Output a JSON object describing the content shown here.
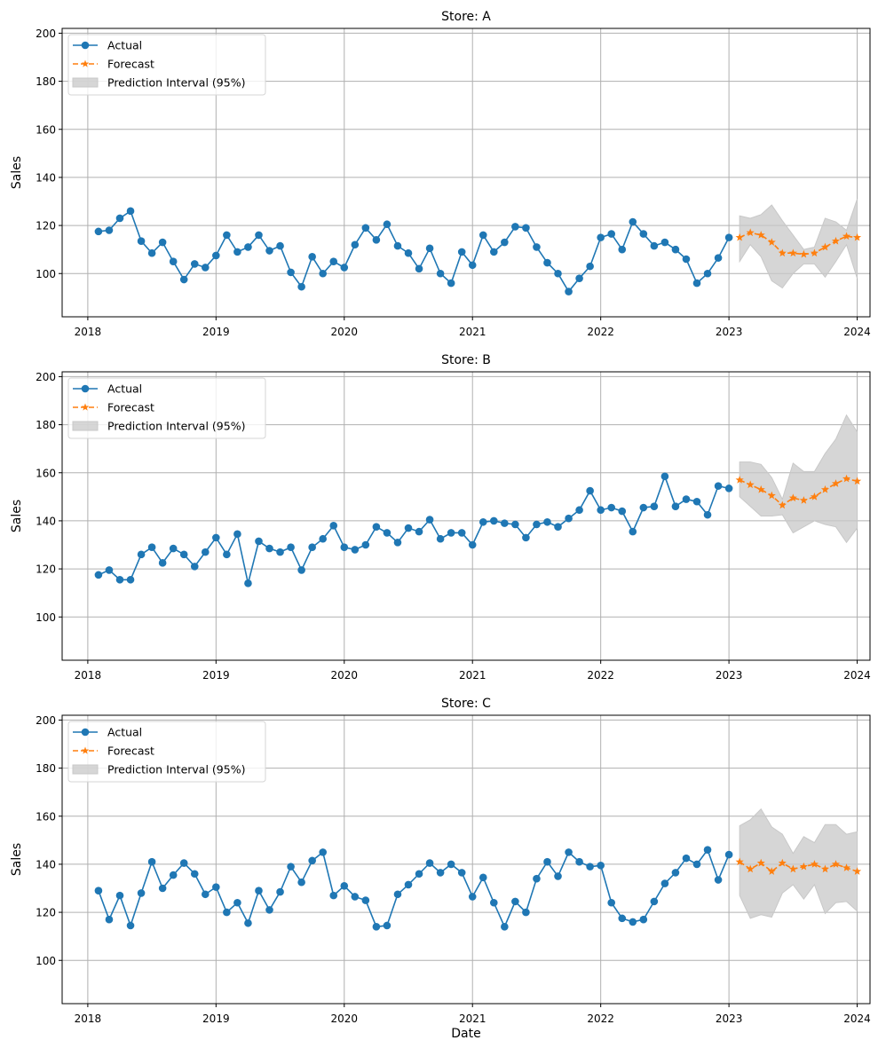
{
  "figure": {
    "xlabel": "Date",
    "ylabel": "Sales",
    "legend": {
      "placement": "top-left",
      "entries": [
        {
          "label": "Actual",
          "kind": "line-marker"
        },
        {
          "label": "Forecast",
          "kind": "dashed-star"
        },
        {
          "label": "Prediction Interval (95%)",
          "kind": "patch"
        }
      ]
    },
    "colors": {
      "actual": "#1f77b4",
      "forecast": "#ff7f0e",
      "interval": "#c8c8c8",
      "grid": "#b0b0b0"
    }
  },
  "chart_data": [
    {
      "type": "line",
      "title": "Store: A",
      "xlabel": "",
      "ylabel": "Sales",
      "ylim": [
        82,
        202
      ],
      "xlim": [
        2017.8,
        2024.1
      ],
      "yticks": [
        100,
        120,
        140,
        160,
        180,
        200
      ],
      "xticks": [
        "2018",
        "2019",
        "2020",
        "2021",
        "2022",
        "2023",
        "2024"
      ],
      "grid": true,
      "legend": "top-left",
      "actual_start": "2018-02",
      "forecast_start": "2023-02",
      "series": [
        {
          "name": "Actual",
          "values": [
            117.5,
            118,
            123,
            126,
            113.5,
            108.5,
            113,
            105,
            97.5,
            104,
            102.5,
            107.5,
            116,
            109,
            111,
            116,
            109.5,
            111.5,
            100.5,
            94.5,
            107,
            100,
            105,
            102.5,
            112,
            119,
            114,
            120.5,
            111.5,
            108.5,
            102,
            110.5,
            100,
            96,
            109,
            103.5,
            116,
            109,
            113,
            119.5,
            119,
            111,
            104.5,
            100,
            92.5,
            98,
            103,
            115,
            116.5,
            110,
            121.5,
            116.5,
            111.5,
            113,
            110,
            106,
            96,
            100,
            106.5,
            115
          ]
        },
        {
          "name": "Forecast",
          "values": [
            115,
            117,
            116,
            113,
            108.5,
            108.5,
            108,
            108.5,
            111,
            113.5,
            115.5,
            115
          ]
        },
        {
          "name": "Prediction Interval (95%)",
          "lower": [
            105,
            112,
            107,
            97,
            94,
            100,
            104,
            104,
            98.5,
            105,
            112,
            98
          ],
          "upper": [
            124,
            123,
            124.5,
            128.5,
            122,
            116,
            110,
            111,
            123,
            121.5,
            118,
            131
          ]
        }
      ]
    },
    {
      "type": "line",
      "title": "Store: B",
      "xlabel": "",
      "ylabel": "Sales",
      "ylim": [
        82,
        202
      ],
      "xlim": [
        2017.8,
        2024.1
      ],
      "yticks": [
        100,
        120,
        140,
        160,
        180,
        200
      ],
      "xticks": [
        "2018",
        "2019",
        "2020",
        "2021",
        "2022",
        "2023",
        "2024"
      ],
      "grid": true,
      "legend": "top-left",
      "actual_start": "2018-02",
      "forecast_start": "2023-02",
      "series": [
        {
          "name": "Actual",
          "values": [
            117.5,
            119.5,
            115.5,
            115.5,
            126,
            129,
            122.5,
            128.5,
            126,
            121,
            127,
            133,
            126,
            134.5,
            114,
            131.5,
            128.5,
            127,
            129,
            119.5,
            129,
            132.5,
            138,
            129,
            128,
            130,
            137.5,
            135,
            131,
            137,
            135.5,
            140.5,
            132.5,
            135,
            135,
            130,
            139.5,
            140,
            139,
            138.5,
            133,
            138.5,
            139.5,
            137.5,
            141,
            144.5,
            152.5,
            144.5,
            145.5,
            144,
            135.5,
            145.5,
            146,
            158.5,
            146,
            149,
            148,
            142.5,
            154.5,
            153.5
          ]
        },
        {
          "name": "Forecast",
          "values": [
            157,
            155,
            153,
            150.5,
            146.5,
            149.5,
            148.5,
            150,
            153,
            155.5,
            157.5,
            156.5
          ]
        },
        {
          "name": "Prediction Interval (95%)",
          "lower": [
            150,
            146,
            142,
            142,
            142.5,
            135,
            137.5,
            140,
            138.5,
            137.5,
            131,
            137
          ],
          "upper": [
            164.5,
            164.5,
            163.5,
            158,
            149,
            164,
            160.5,
            160.5,
            168,
            174,
            184,
            177
          ]
        }
      ]
    },
    {
      "type": "line",
      "title": "Store: C",
      "xlabel": "Date",
      "ylabel": "Sales",
      "ylim": [
        82,
        202
      ],
      "xlim": [
        2017.8,
        2024.1
      ],
      "yticks": [
        100,
        120,
        140,
        160,
        180,
        200
      ],
      "xticks": [
        "2018",
        "2019",
        "2020",
        "2021",
        "2022",
        "2023",
        "2024"
      ],
      "grid": true,
      "legend": "top-left",
      "actual_start": "2018-02",
      "forecast_start": "2023-02",
      "series": [
        {
          "name": "Actual",
          "values": [
            129,
            117,
            127,
            114.5,
            128,
            141,
            130,
            135.5,
            140.5,
            136,
            127.5,
            130.5,
            120,
            124,
            115.5,
            129,
            121,
            128.5,
            139,
            132.5,
            141.5,
            145,
            127,
            131,
            126.5,
            125,
            114,
            114.5,
            127.5,
            131.5,
            136,
            140.5,
            136.5,
            140,
            136.5,
            126.5,
            134.5,
            124,
            114,
            124.5,
            120,
            134,
            141,
            135,
            145,
            141,
            139,
            139.5,
            124,
            117.5,
            116,
            117,
            124.5,
            132,
            136.5,
            142.5,
            140,
            146,
            133.5,
            144
          ]
        },
        {
          "name": "Forecast",
          "values": [
            141,
            138,
            140.5,
            137,
            140.5,
            138,
            139,
            140,
            138,
            140,
            138.5,
            137
          ]
        },
        {
          "name": "Prediction Interval (95%)",
          "lower": [
            127,
            117.5,
            119,
            118,
            128,
            131.5,
            125.5,
            131.5,
            119.5,
            124,
            124.5,
            120.5
          ],
          "upper": [
            156,
            158.5,
            163,
            155.5,
            152.5,
            144.5,
            151.5,
            149,
            156.5,
            156.5,
            152.5,
            153.5
          ]
        }
      ]
    }
  ]
}
